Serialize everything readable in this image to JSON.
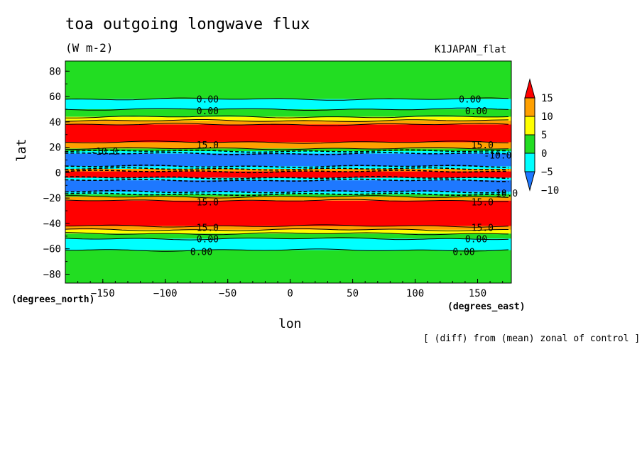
{
  "title": "toa outgoing longwave flux",
  "units": "(W m-2)",
  "run_label": "K1JAPAN_flat",
  "note": "[ (diff) from (mean) zonal of control ]",
  "chart_data": {
    "type": "contour",
    "xlabel": "lon",
    "ylabel": "lat",
    "x_unit": "(degrees_east)",
    "y_unit": "(degrees_north)",
    "xlim": [
      -180,
      177
    ],
    "ylim": [
      -87,
      88
    ],
    "xticks": [
      -150,
      -100,
      -50,
      0,
      50,
      100,
      150
    ],
    "yticks": [
      -80,
      -60,
      -40,
      -20,
      0,
      20,
      40,
      60,
      80
    ],
    "colorbar": {
      "levels": [
        -10,
        -5,
        0,
        5,
        10,
        15
      ],
      "colors": [
        "#1e78ff",
        "#00ffff",
        "#22dd22",
        "#ffff00",
        "#ffa000",
        "#ff0000"
      ]
    },
    "zonal_bands": [
      {
        "lat_from": 58,
        "lat_to": 88,
        "color": "#22dd22"
      },
      {
        "lat_from": 50,
        "lat_to": 58,
        "color": "#00ffff"
      },
      {
        "lat_from": 44,
        "lat_to": 50,
        "color": "#22dd22"
      },
      {
        "lat_from": 41,
        "lat_to": 44,
        "color": "#ffff00"
      },
      {
        "lat_from": 38,
        "lat_to": 41,
        "color": "#ffa000"
      },
      {
        "lat_from": 24,
        "lat_to": 38,
        "color": "#ff0000"
      },
      {
        "lat_from": 19,
        "lat_to": 24,
        "color": "#ffa000"
      },
      {
        "lat_from": 17,
        "lat_to": 19,
        "color": "#22dd22"
      },
      {
        "lat_from": 15,
        "lat_to": 17,
        "color": "#00ffff"
      },
      {
        "lat_from": 5,
        "lat_to": 15,
        "color": "#1e78ff"
      },
      {
        "lat_from": 3,
        "lat_to": 5,
        "color": "#00ffff"
      },
      {
        "lat_from": 1,
        "lat_to": 3,
        "color": "#ffa000"
      },
      {
        "lat_from": -4,
        "lat_to": 1,
        "color": "#ff0000"
      },
      {
        "lat_from": -6,
        "lat_to": -4,
        "color": "#00ffff"
      },
      {
        "lat_from": -15,
        "lat_to": -6,
        "color": "#1e78ff"
      },
      {
        "lat_from": -17,
        "lat_to": -15,
        "color": "#00ffff"
      },
      {
        "lat_from": -19,
        "lat_to": -17,
        "color": "#22dd22"
      },
      {
        "lat_from": -22,
        "lat_to": -19,
        "color": "#ffa000"
      },
      {
        "lat_from": -42,
        "lat_to": -22,
        "color": "#ff0000"
      },
      {
        "lat_from": -45,
        "lat_to": -42,
        "color": "#ffa000"
      },
      {
        "lat_from": -48,
        "lat_to": -45,
        "color": "#ffff00"
      },
      {
        "lat_from": -52,
        "lat_to": -48,
        "color": "#22dd22"
      },
      {
        "lat_from": -61,
        "lat_to": -52,
        "color": "#00ffff"
      },
      {
        "lat_from": -87,
        "lat_to": -61,
        "color": "#22dd22"
      }
    ],
    "contour_labels": [
      {
        "text": "0.00",
        "lon": -75,
        "lat": 58
      },
      {
        "text": "0.00",
        "lon": 135,
        "lat": 58
      },
      {
        "text": "0.00",
        "lon": -75,
        "lat": 49
      },
      {
        "text": "0.00",
        "lon": 140,
        "lat": 49
      },
      {
        "text": "15.0",
        "lon": -75,
        "lat": 22
      },
      {
        "text": "15.0",
        "lon": 145,
        "lat": 22
      },
      {
        "text": "-10.0",
        "lon": -160,
        "lat": 17
      },
      {
        "text": "-10.0",
        "lon": 155,
        "lat": 14
      },
      {
        "text": "-10.0",
        "lon": 160,
        "lat": -16
      },
      {
        "text": "15.0",
        "lon": -75,
        "lat": -23
      },
      {
        "text": "15.0",
        "lon": 145,
        "lat": -23
      },
      {
        "text": "15.0",
        "lon": -75,
        "lat": -43
      },
      {
        "text": "15.0",
        "lon": 145,
        "lat": -43
      },
      {
        "text": "0.00",
        "lon": -75,
        "lat": -52
      },
      {
        "text": "0.00",
        "lon": 140,
        "lat": -52
      },
      {
        "text": "0.00",
        "lon": -80,
        "lat": -62
      },
      {
        "text": "0.00",
        "lon": 130,
        "lat": -62
      }
    ]
  }
}
